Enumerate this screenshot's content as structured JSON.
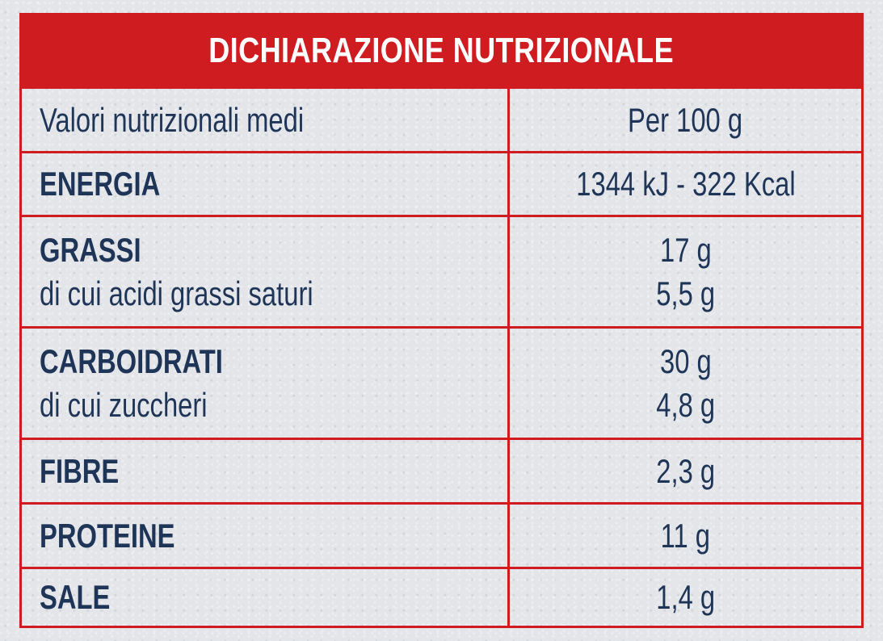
{
  "title": "DICHIARAZIONE NUTRIZIONALE",
  "columns": {
    "label": "Valori nutrizionali medi",
    "value": "Per 100 g"
  },
  "rows": [
    {
      "label": "ENERGIA",
      "value": "1344 kJ - 322 Kcal"
    },
    {
      "label": "GRASSI",
      "value": "17 g",
      "sub_label": "di cui acidi grassi saturi",
      "sub_value": "5,5 g"
    },
    {
      "label": "CARBOIDRATI",
      "value": "30 g",
      "sub_label": "di cui zuccheri",
      "sub_value": "4,8 g"
    },
    {
      "label": "FIBRE",
      "value": "2,3 g"
    },
    {
      "label": "PROTEINE",
      "value": "11 g"
    },
    {
      "label": "SALE",
      "value": "1,4 g"
    }
  ],
  "colors": {
    "accent": "#cf1c20",
    "text": "#1f3558",
    "background": "#e3e5e9"
  }
}
